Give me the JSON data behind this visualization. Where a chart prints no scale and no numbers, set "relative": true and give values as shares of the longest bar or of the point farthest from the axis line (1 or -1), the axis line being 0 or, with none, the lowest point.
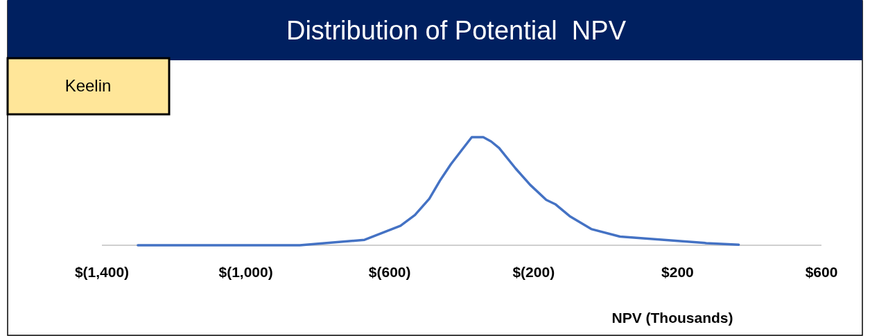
{
  "chart_data": {
    "type": "line",
    "title": "Distribution of Potential  NPV",
    "xlabel": "NPV (Thousands)",
    "annotations": [
      "Keelin"
    ],
    "relative": true,
    "xlim": [
      -1400,
      600
    ],
    "xticks": [
      {
        "value": -1400,
        "label": "$(1,400)"
      },
      {
        "value": -1000,
        "label": "$(1,000)"
      },
      {
        "value": -600,
        "label": "$(600)"
      },
      {
        "value": -200,
        "label": "$(200)"
      },
      {
        "value": 200,
        "label": "$200"
      },
      {
        "value": 600,
        "label": "$600"
      }
    ],
    "x": [
      -1300,
      -850,
      -670,
      -570,
      -530,
      -490,
      -460,
      -430,
      -400,
      -372,
      -340,
      -318,
      -296,
      -250,
      -210,
      -165,
      -140,
      -100,
      -40,
      40,
      280,
      370
    ],
    "series": [
      {
        "color": "#4472c4",
        "values": [
          0,
          0,
          0.05,
          0.18,
          0.28,
          0.43,
          0.6,
          0.75,
          0.88,
          1,
          1,
          0.96,
          0.9,
          0.71,
          0.56,
          0.42,
          0.38,
          0.27,
          0.15,
          0.08,
          0.02,
          0.005
        ]
      }
    ],
    "grid": false
  }
}
